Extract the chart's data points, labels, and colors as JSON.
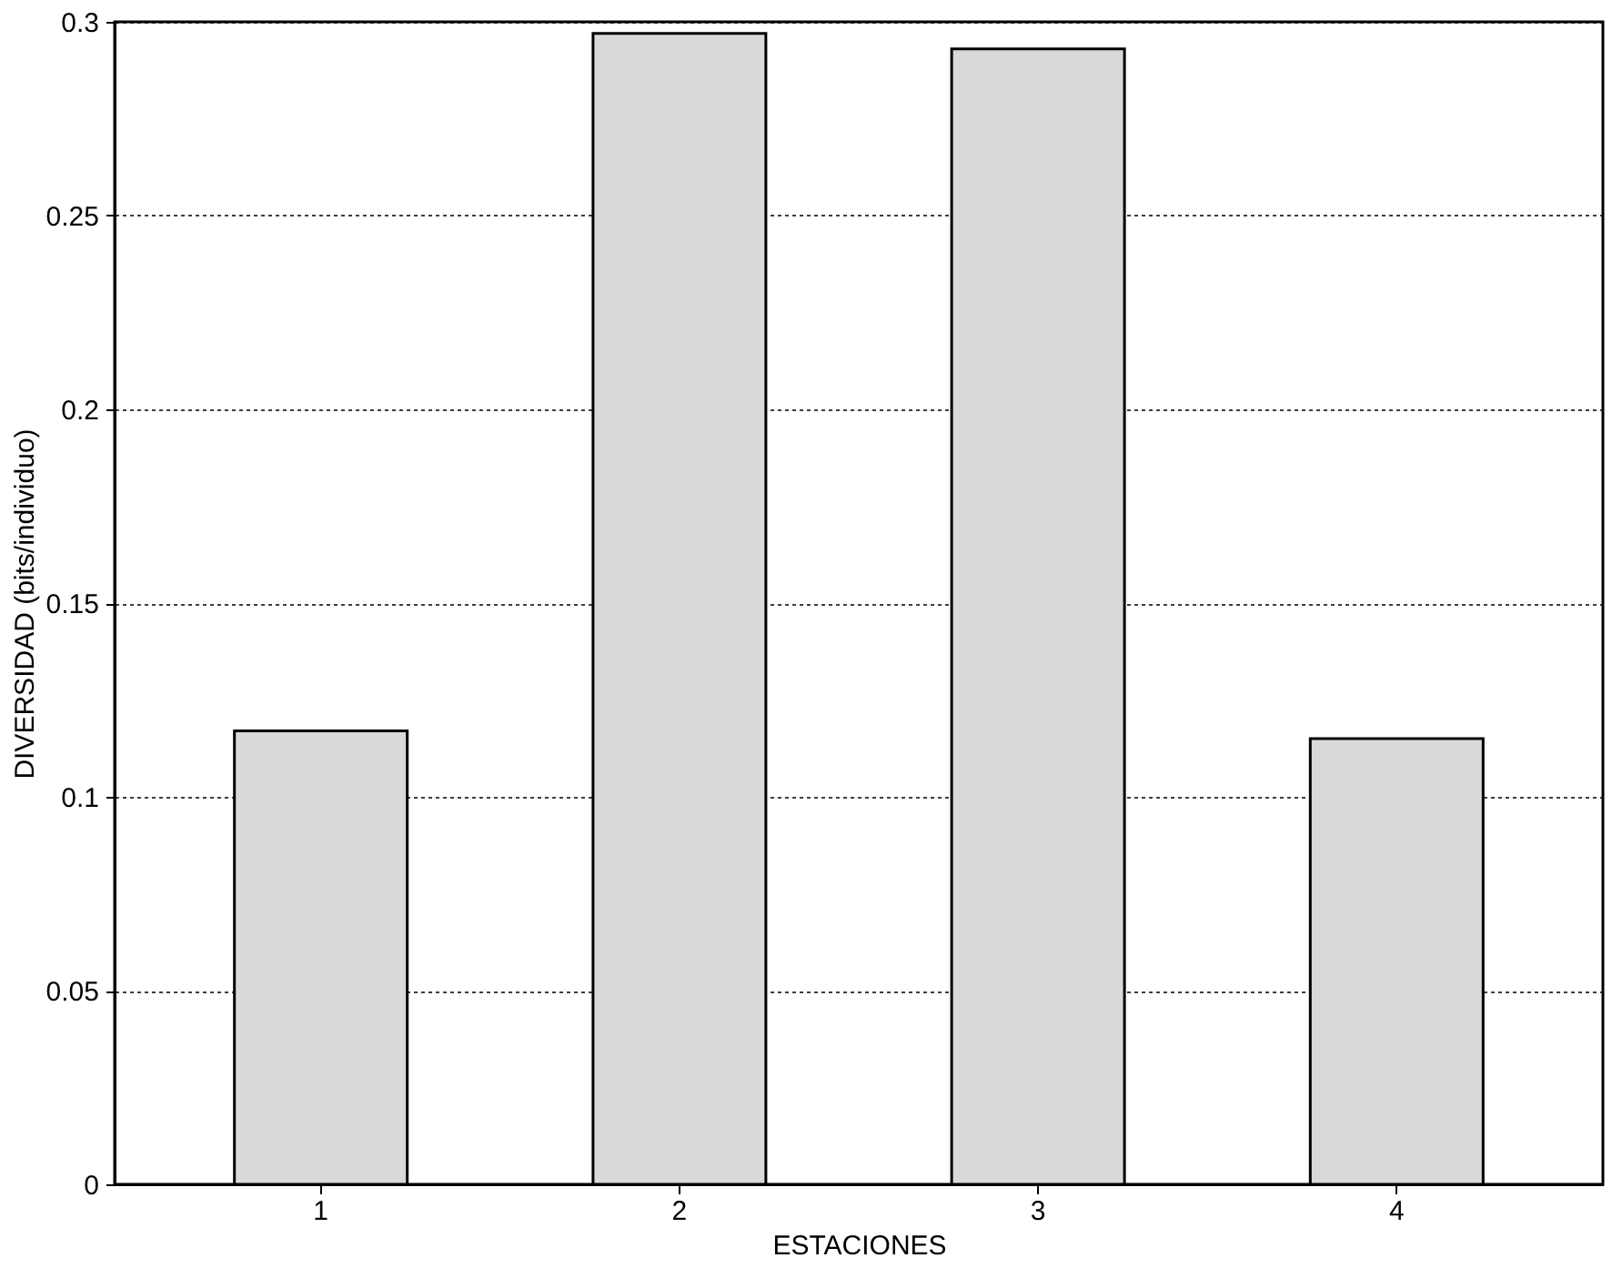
{
  "chart_data": {
    "type": "bar",
    "xlabel": "ESTACIONES",
    "ylabel": "DIVERSIDAD (bits/individuo)",
    "categories": [
      "1",
      "2",
      "3",
      "4"
    ],
    "values": [
      0.117,
      0.297,
      0.293,
      0.115
    ],
    "color": "#d9d9d9",
    "ylim": [
      0,
      0.3
    ],
    "yticks": [
      0,
      0.05,
      0.1,
      0.15,
      0.2,
      0.25,
      0.3
    ],
    "grid": "y"
  }
}
